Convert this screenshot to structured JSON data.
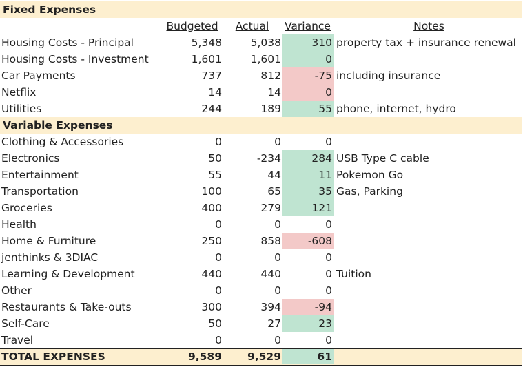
{
  "fixed": {
    "title": "Fixed Expenses",
    "columns": {
      "budgeted": "Budgeted",
      "actual": "Actual",
      "variance": "Variance",
      "notes": "Notes"
    },
    "rows": [
      {
        "category": "Housing Costs - Principal",
        "budgeted": "5,348",
        "actual": "5,038",
        "variance": "310",
        "status": "positive",
        "notes": "property tax + insurance renewal"
      },
      {
        "category": "Housing Costs - Investment",
        "budgeted": "1,601",
        "actual": "1,601",
        "variance": "0",
        "status": "positive",
        "notes": ""
      },
      {
        "category": "Car Payments",
        "budgeted": "737",
        "actual": "812",
        "variance": "-75",
        "status": "negative",
        "notes": "including insurance"
      },
      {
        "category": "Netflix",
        "budgeted": "14",
        "actual": "14",
        "variance": "0",
        "status": "negative",
        "notes": ""
      },
      {
        "category": "Utilities",
        "budgeted": "244",
        "actual": "189",
        "variance": "55",
        "status": "positive",
        "notes": "phone, internet, hydro"
      }
    ]
  },
  "variable": {
    "title": "Variable Expenses",
    "rows": [
      {
        "category": "Clothing & Accessories",
        "budgeted": "0",
        "actual": "0",
        "variance": "0",
        "status": "none",
        "notes": ""
      },
      {
        "category": "Electronics",
        "budgeted": "50",
        "actual": "-234",
        "variance": "284",
        "status": "positive",
        "notes": "USB Type C cable"
      },
      {
        "category": "Entertainment",
        "budgeted": "55",
        "actual": "44",
        "variance": "11",
        "status": "positive",
        "notes": "Pokemon Go"
      },
      {
        "category": "Transportation",
        "budgeted": "100",
        "actual": "65",
        "variance": "35",
        "status": "positive",
        "notes": "Gas, Parking"
      },
      {
        "category": "Groceries",
        "budgeted": "400",
        "actual": "279",
        "variance": "121",
        "status": "positive",
        "notes": ""
      },
      {
        "category": "Health",
        "budgeted": "0",
        "actual": "0",
        "variance": "0",
        "status": "none",
        "notes": ""
      },
      {
        "category": "Home & Furniture",
        "budgeted": "250",
        "actual": "858",
        "variance": "-608",
        "status": "negative",
        "notes": ""
      },
      {
        "category": "jenthinks & 3DIAC",
        "budgeted": "0",
        "actual": "0",
        "variance": "0",
        "status": "none",
        "notes": ""
      },
      {
        "category": "Learning & Development",
        "budgeted": "440",
        "actual": "440",
        "variance": "0",
        "status": "none",
        "notes": "Tuition"
      },
      {
        "category": "Other",
        "budgeted": "0",
        "actual": "0",
        "variance": "0",
        "status": "none",
        "notes": ""
      },
      {
        "category": "Restaurants & Take-outs",
        "budgeted": "300",
        "actual": "394",
        "variance": "-94",
        "status": "negative",
        "notes": ""
      },
      {
        "category": "Self-Care",
        "budgeted": "50",
        "actual": "27",
        "variance": "23",
        "status": "positive",
        "notes": ""
      },
      {
        "category": "Travel",
        "budgeted": "0",
        "actual": "0",
        "variance": "0",
        "status": "none",
        "notes": ""
      }
    ]
  },
  "total": {
    "label": "TOTAL EXPENSES",
    "budgeted": "9,589",
    "actual": "9,529",
    "variance": "61",
    "status": "positive"
  },
  "colors": {
    "section_background": "#fdefcf",
    "variance_positive": "#bfe4d1",
    "variance_negative": "#f3c9c8"
  }
}
